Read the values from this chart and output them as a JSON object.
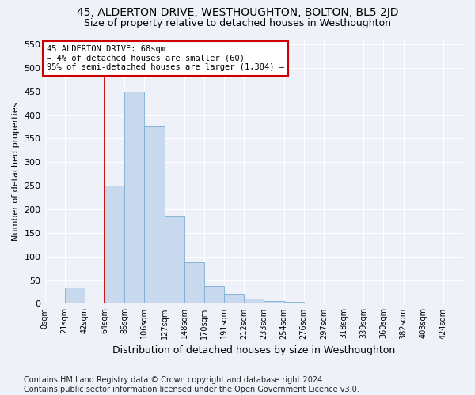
{
  "title1": "45, ALDERTON DRIVE, WESTHOUGHTON, BOLTON, BL5 2JD",
  "title2": "Size of property relative to detached houses in Westhoughton",
  "xlabel": "Distribution of detached houses by size in Westhoughton",
  "ylabel": "Number of detached properties",
  "footnote": "Contains HM Land Registry data © Crown copyright and database right 2024.\nContains public sector information licensed under the Open Government Licence v3.0.",
  "bar_color": "#c8d9ee",
  "bar_edge_color": "#7aadd4",
  "annotation_line1": "45 ALDERTON DRIVE: 68sqm",
  "annotation_line2": "← 4% of detached houses are smaller (60)",
  "annotation_line3": "95% of semi-detached houses are larger (1,384) →",
  "annotation_box_color": "#ffffff",
  "annotation_border_color": "#cc0000",
  "vline_color": "#cc0000",
  "vline_x": 63,
  "bin_width": 21,
  "bin_starts": [
    0,
    21,
    42,
    63,
    84,
    105,
    126,
    147,
    168,
    189,
    210,
    231,
    252,
    273,
    294,
    315,
    336,
    357,
    378,
    399,
    420
  ],
  "bar_heights": [
    2,
    35,
    0,
    250,
    450,
    375,
    185,
    88,
    38,
    20,
    10,
    5,
    4,
    0,
    2,
    0,
    0,
    0,
    2,
    0,
    2
  ],
  "ylim": [
    0,
    560
  ],
  "yticks": [
    0,
    50,
    100,
    150,
    200,
    250,
    300,
    350,
    400,
    450,
    500,
    550
  ],
  "xtick_labels": [
    "0sqm",
    "21sqm",
    "42sqm",
    "64sqm",
    "85sqm",
    "106sqm",
    "127sqm",
    "148sqm",
    "170sqm",
    "191sqm",
    "212sqm",
    "233sqm",
    "254sqm",
    "276sqm",
    "297sqm",
    "318sqm",
    "339sqm",
    "360sqm",
    "382sqm",
    "403sqm",
    "424sqm"
  ],
  "bg_color": "#eef2f8",
  "plot_bg_color": "#eef2f8",
  "grid_color": "#ffffff",
  "title1_fontsize": 10,
  "title2_fontsize": 9,
  "ylabel_fontsize": 8,
  "xlabel_fontsize": 9,
  "footnote_fontsize": 7
}
